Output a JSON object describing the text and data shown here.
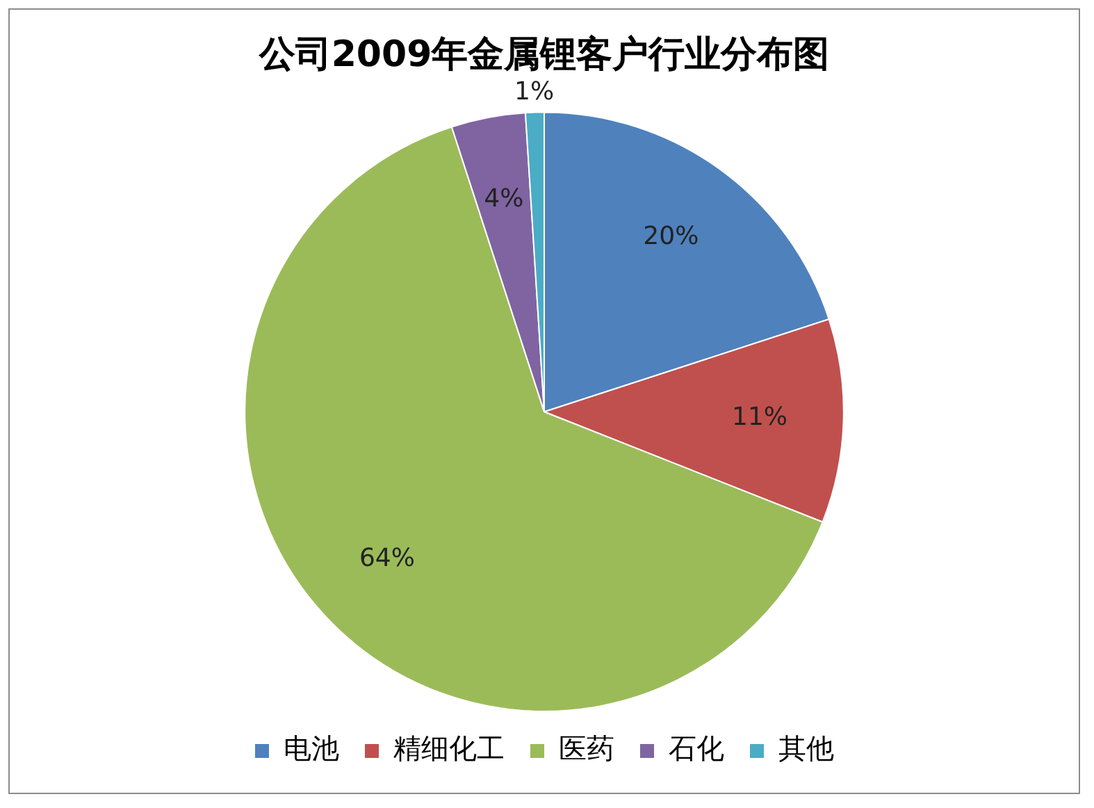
{
  "chart_data": {
    "type": "pie",
    "title": "公司2009年金属锂客户行业分布图",
    "categories": [
      "电池",
      "精细化工",
      "医药",
      "石化",
      "其他"
    ],
    "values": [
      20,
      11,
      64,
      4,
      1
    ],
    "value_labels": [
      "20%",
      "11%",
      "64%",
      "4%",
      "1%"
    ],
    "colors": [
      "#4f81bd",
      "#c0504d",
      "#9bbb59",
      "#8064a2",
      "#4bacc6"
    ],
    "legend": "bottom"
  }
}
